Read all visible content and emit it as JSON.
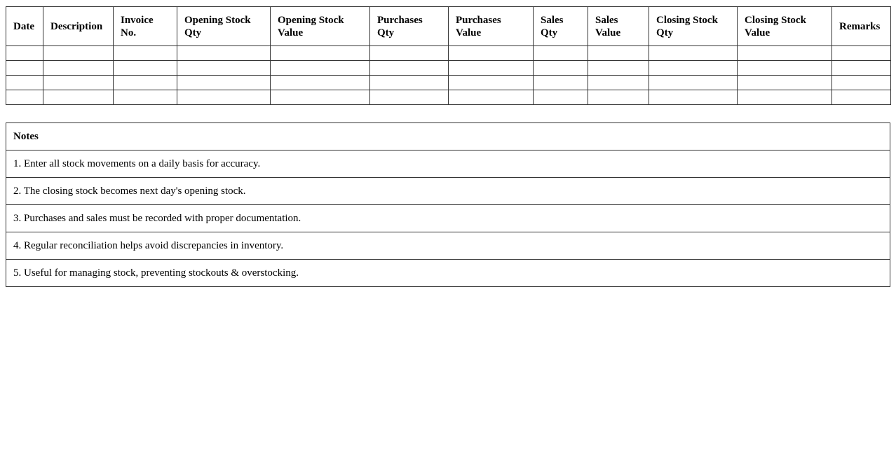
{
  "stock_table": {
    "headers": [
      "Date",
      "Description",
      "Invoice No.",
      "Opening Stock Qty",
      "Opening Stock Value",
      "Purchases Qty",
      "Purchases Value",
      "Sales Qty",
      "Sales Value",
      "Closing Stock Qty",
      "Closing Stock Value",
      "Remarks"
    ],
    "empty_rows": 4
  },
  "notes": {
    "title": "Notes",
    "items": [
      "1. Enter all stock movements on a daily basis for accuracy.",
      "2. The closing stock becomes next day's opening stock.",
      "3. Purchases and sales must be recorded with proper documentation.",
      "4. Regular reconciliation helps avoid discrepancies in inventory.",
      "5. Useful for managing stock, preventing stockouts & overstocking."
    ]
  }
}
